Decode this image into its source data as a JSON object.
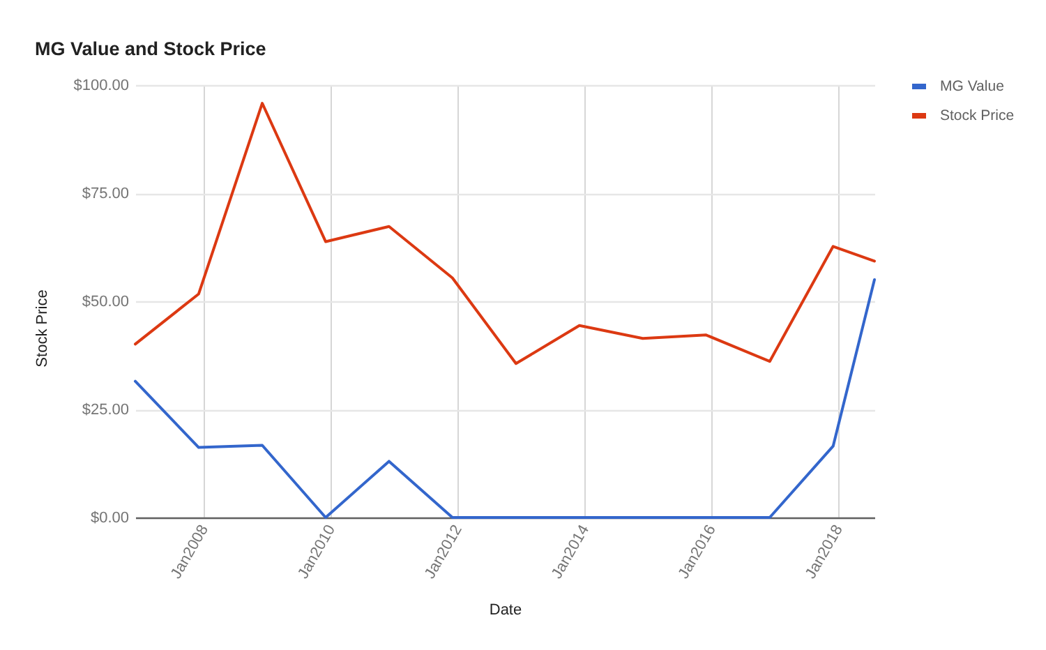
{
  "chart_data": {
    "type": "line",
    "title": "MG Value and Stock Price",
    "xlabel": "Date",
    "ylabel": "Stock Price",
    "x": [
      "2006-12",
      "2007-12",
      "2008-12",
      "2009-12",
      "2010-12",
      "2011-12",
      "2012-12",
      "2013-12",
      "2014-12",
      "2015-12",
      "2016-12",
      "2017-12",
      "2018-07-27"
    ],
    "series": [
      {
        "name": "MG Value",
        "color": "#3366cc",
        "values": [
          31.5,
          16.2,
          16.7,
          0,
          13,
          0,
          0,
          0,
          0,
          0,
          0,
          16.5,
          55
        ]
      },
      {
        "name": "Stock Price",
        "color": "#dc3912",
        "values": [
          40.1,
          51.7,
          95.8,
          63.8,
          67.3,
          55.4,
          35.6,
          44.4,
          41.4,
          42.2,
          36.1,
          62.7,
          59.3
        ]
      }
    ],
    "xlim": [
      "2006-12",
      "2018-07-27"
    ],
    "xticks": [
      {
        "value": "2008-01",
        "label": "Jan2008"
      },
      {
        "value": "2010-01",
        "label": "Jan2010"
      },
      {
        "value": "2012-01",
        "label": "Jan2012"
      },
      {
        "value": "2014-01",
        "label": "Jan2014"
      },
      {
        "value": "2016-01",
        "label": "Jan2016"
      },
      {
        "value": "2018-01",
        "label": "Jan2018"
      }
    ],
    "ylim": [
      0,
      100
    ],
    "yticks": [
      {
        "value": 0,
        "label": "$0.00"
      },
      {
        "value": 25,
        "label": "$25.00"
      },
      {
        "value": 50,
        "label": "$50.00"
      },
      {
        "value": 75,
        "label": "$75.00"
      },
      {
        "value": 100,
        "label": "$100.00"
      }
    ],
    "grid": true,
    "legend": "top right",
    "marker": "none",
    "line_style": "solid"
  }
}
